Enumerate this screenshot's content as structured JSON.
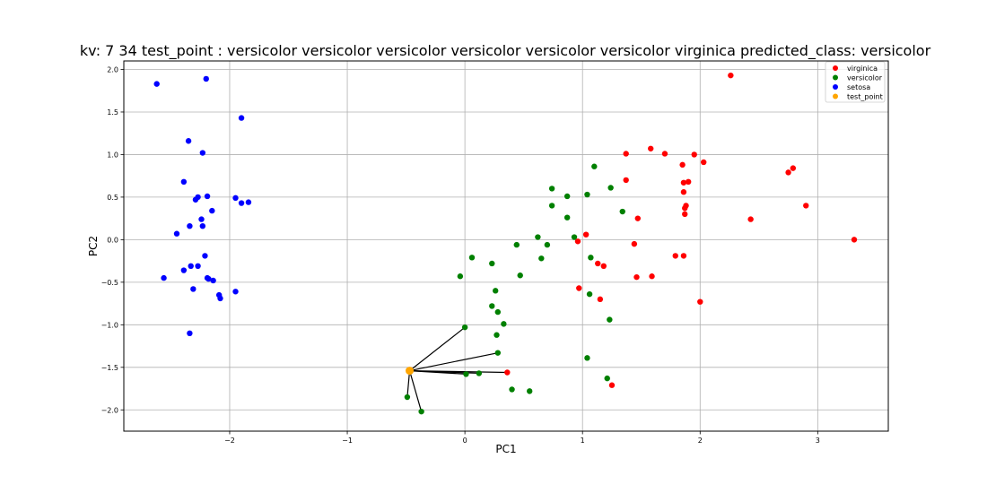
{
  "chart_data": {
    "type": "scatter",
    "title": "kv: 7 34 test_point : versicolor versicolor versicolor versicolor versicolor versicolor virginica   predicted_class: versicolor",
    "xlabel": "PC1",
    "ylabel": "PC2",
    "xlim": [
      -2.9,
      3.6
    ],
    "ylim": [
      -2.25,
      2.1
    ],
    "xticks": [
      -2,
      -1,
      0,
      1,
      2,
      3
    ],
    "yticks": [
      -2.0,
      -1.5,
      -1.0,
      -0.5,
      0.0,
      0.5,
      1.0,
      1.5,
      2.0
    ],
    "grid": true,
    "legend_position": "top-right",
    "series": [
      {
        "name": "virginica",
        "color": "#ff0000",
        "points": [
          [
            2.26,
            1.93
          ],
          [
            1.58,
            1.07
          ],
          [
            1.7,
            1.01
          ],
          [
            1.95,
            1.0
          ],
          [
            1.37,
            1.01
          ],
          [
            2.03,
            0.91
          ],
          [
            1.85,
            0.88
          ],
          [
            2.79,
            0.84
          ],
          [
            2.75,
            0.79
          ],
          [
            1.37,
            0.7
          ],
          [
            1.9,
            0.68
          ],
          [
            1.86,
            0.67
          ],
          [
            1.86,
            0.56
          ],
          [
            1.88,
            0.4
          ],
          [
            1.87,
            0.37
          ],
          [
            2.9,
            0.4
          ],
          [
            1.87,
            0.3
          ],
          [
            1.47,
            0.25
          ],
          [
            2.43,
            0.24
          ],
          [
            3.31,
            0.0
          ],
          [
            1.03,
            0.06
          ],
          [
            0.96,
            -0.02
          ],
          [
            1.44,
            -0.05
          ],
          [
            1.13,
            -0.28
          ],
          [
            1.18,
            -0.31
          ],
          [
            1.79,
            -0.19
          ],
          [
            1.86,
            -0.19
          ],
          [
            1.46,
            -0.44
          ],
          [
            1.59,
            -0.43
          ],
          [
            0.97,
            -0.57
          ],
          [
            1.15,
            -0.7
          ],
          [
            2.0,
            -0.73
          ],
          [
            0.36,
            -1.56
          ],
          [
            1.25,
            -1.71
          ]
        ]
      },
      {
        "name": "versicolor",
        "color": "#008000",
        "points": [
          [
            1.1,
            0.86
          ],
          [
            0.74,
            0.6
          ],
          [
            1.24,
            0.61
          ],
          [
            0.87,
            0.51
          ],
          [
            1.04,
            0.53
          ],
          [
            0.74,
            0.4
          ],
          [
            1.34,
            0.33
          ],
          [
            0.87,
            0.26
          ],
          [
            0.93,
            0.03
          ],
          [
            0.62,
            0.03
          ],
          [
            0.44,
            -0.06
          ],
          [
            0.7,
            -0.06
          ],
          [
            0.06,
            -0.21
          ],
          [
            0.65,
            -0.22
          ],
          [
            1.07,
            -0.21
          ],
          [
            0.23,
            -0.28
          ],
          [
            -0.04,
            -0.43
          ],
          [
            0.47,
            -0.42
          ],
          [
            0.26,
            -0.6
          ],
          [
            1.06,
            -0.64
          ],
          [
            0.23,
            -0.78
          ],
          [
            0.28,
            -0.85
          ],
          [
            1.23,
            -0.94
          ],
          [
            0.33,
            -0.99
          ],
          [
            0.27,
            -1.12
          ],
          [
            0.0,
            -1.03
          ],
          [
            0.28,
            -1.33
          ],
          [
            1.04,
            -1.39
          ],
          [
            0.01,
            -1.58
          ],
          [
            0.12,
            -1.57
          ],
          [
            1.21,
            -1.63
          ],
          [
            0.4,
            -1.76
          ],
          [
            0.55,
            -1.78
          ],
          [
            -0.49,
            -1.85
          ],
          [
            -0.37,
            -2.02
          ]
        ]
      },
      {
        "name": "setosa",
        "color": "#0000ff",
        "points": [
          [
            -2.2,
            1.89
          ],
          [
            -2.62,
            1.83
          ],
          [
            -1.9,
            1.43
          ],
          [
            -2.35,
            1.16
          ],
          [
            -2.23,
            1.02
          ],
          [
            -2.39,
            0.68
          ],
          [
            -2.19,
            0.51
          ],
          [
            -2.27,
            0.5
          ],
          [
            -2.29,
            0.47
          ],
          [
            -1.95,
            0.49
          ],
          [
            -1.84,
            0.44
          ],
          [
            -1.9,
            0.43
          ],
          [
            -2.15,
            0.34
          ],
          [
            -2.24,
            0.24
          ],
          [
            -2.34,
            0.16
          ],
          [
            -2.23,
            0.16
          ],
          [
            -2.45,
            0.07
          ],
          [
            -2.21,
            -0.19
          ],
          [
            -2.33,
            -0.31
          ],
          [
            -2.27,
            -0.31
          ],
          [
            -2.39,
            -0.36
          ],
          [
            -2.56,
            -0.45
          ],
          [
            -2.19,
            -0.45
          ],
          [
            -2.18,
            -0.46
          ],
          [
            -2.14,
            -0.48
          ],
          [
            -2.31,
            -0.58
          ],
          [
            -1.95,
            -0.61
          ],
          [
            -2.09,
            -0.65
          ],
          [
            -2.08,
            -0.69
          ],
          [
            -2.34,
            -1.1
          ]
        ]
      },
      {
        "name": "test_point",
        "color": "#ffa500",
        "points": [
          [
            -0.47,
            -1.54
          ]
        ]
      }
    ],
    "neighbor_lines": {
      "color": "#000000",
      "from": [
        -0.47,
        -1.54
      ],
      "to": [
        [
          0.0,
          -1.03
        ],
        [
          0.28,
          -1.33
        ],
        [
          0.12,
          -1.57
        ],
        [
          0.01,
          -1.58
        ],
        [
          0.36,
          -1.56
        ],
        [
          -0.49,
          -1.85
        ],
        [
          -0.37,
          -2.02
        ]
      ]
    }
  }
}
